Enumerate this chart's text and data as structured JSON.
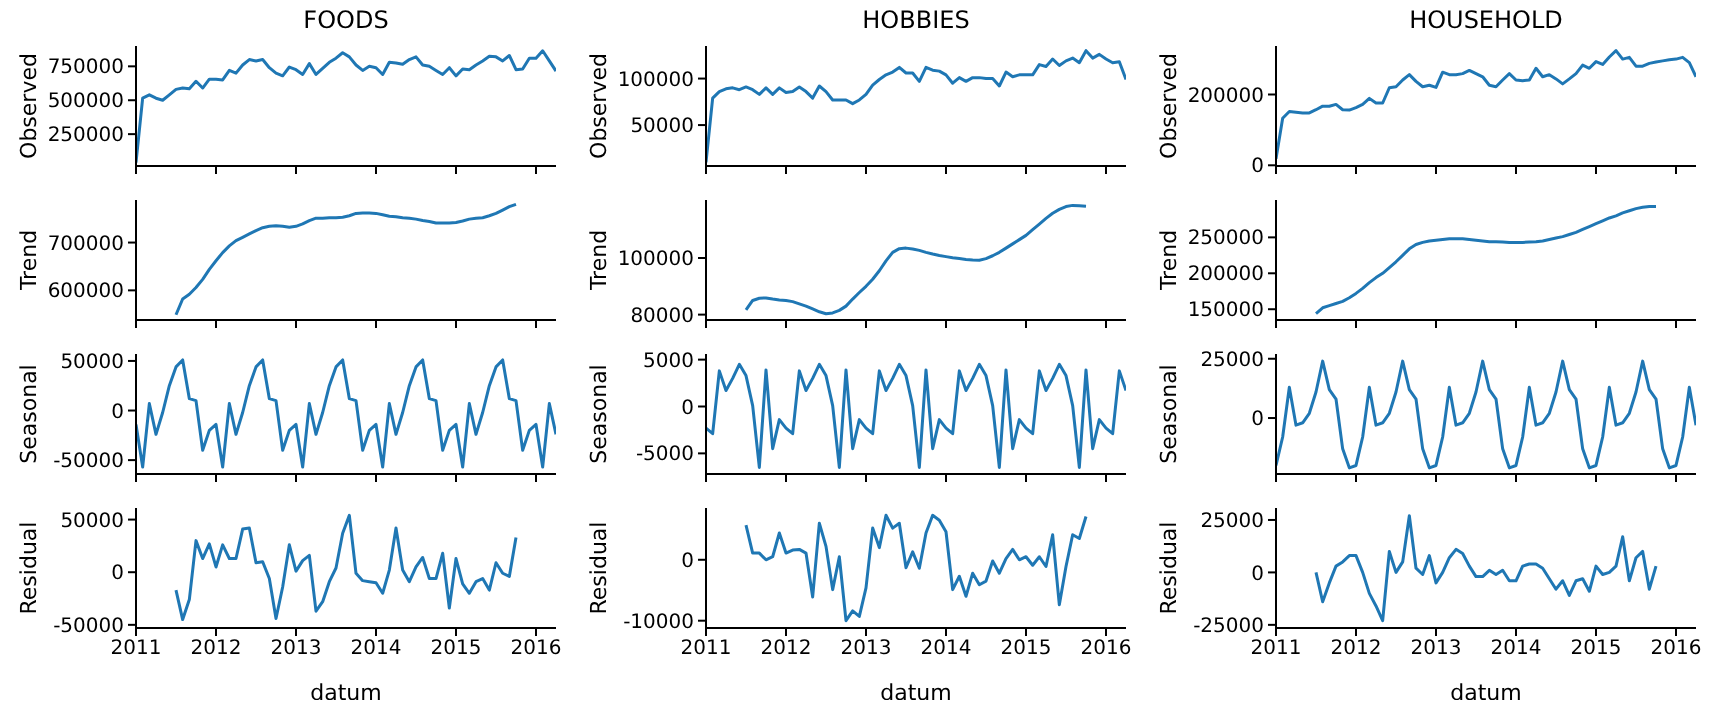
{
  "chart_data": [
    {
      "type": "line",
      "title": "FOODS",
      "ylabel": "Observed",
      "tick_labels": "y",
      "xlim": [
        "2011-01",
        "2016-04"
      ],
      "xticks": [
        "2011",
        "2012",
        "2013",
        "2014",
        "2015",
        "2016"
      ],
      "ylim": [
        15000,
        900000
      ],
      "yticks": [
        250000,
        500000,
        750000
      ],
      "color": "#1f77b4",
      "x": [
        "2011-01",
        "2011-02",
        "2011-03",
        "2011-04",
        "2011-05",
        "2011-06",
        "2011-07",
        "2011-08",
        "2011-09",
        "2011-10",
        "2011-11",
        "2011-12",
        "2012-01",
        "2012-02",
        "2012-03",
        "2012-04",
        "2012-05",
        "2012-06",
        "2012-07",
        "2012-08",
        "2012-09",
        "2012-10",
        "2012-11",
        "2012-12",
        "2013-01",
        "2013-02",
        "2013-03",
        "2013-04",
        "2013-05",
        "2013-06",
        "2013-07",
        "2013-08",
        "2013-09",
        "2013-10",
        "2013-11",
        "2013-12",
        "2014-01",
        "2014-02",
        "2014-03",
        "2014-04",
        "2014-05",
        "2014-06",
        "2014-07",
        "2014-08",
        "2014-09",
        "2014-10",
        "2014-11",
        "2014-12",
        "2015-01",
        "2015-02",
        "2015-03",
        "2015-04",
        "2015-05",
        "2015-06",
        "2015-07",
        "2015-08",
        "2015-09",
        "2015-10",
        "2015-11",
        "2015-12",
        "2016-01",
        "2016-02",
        "2016-03",
        "2016-04"
      ],
      "values": [
        40000,
        515000,
        540000,
        515000,
        500000,
        540000,
        580000,
        590000,
        585000,
        640000,
        590000,
        655000,
        655000,
        650000,
        720000,
        700000,
        760000,
        800000,
        790000,
        800000,
        740000,
        700000,
        680000,
        745000,
        725000,
        690000,
        770000,
        690000,
        735000,
        780000,
        810000,
        850000,
        820000,
        760000,
        720000,
        750000,
        740000,
        690000,
        780000,
        775000,
        765000,
        800000,
        820000,
        760000,
        750000,
        720000,
        690000,
        740000,
        680000,
        730000,
        725000,
        760000,
        790000,
        825000,
        820000,
        790000,
        830000,
        725000,
        730000,
        810000,
        810000,
        865000,
        790000,
        715000
      ]
    },
    {
      "type": "line",
      "title": "HOBBIES",
      "ylabel": "Observed",
      "tick_labels": "y",
      "xlim": [
        "2011-01",
        "2016-04"
      ],
      "xticks": [
        "2011",
        "2012",
        "2013",
        "2014",
        "2015",
        "2016"
      ],
      "ylim": [
        6000,
        135000
      ],
      "yticks": [
        50000,
        100000
      ],
      "color": "#1f77b4",
      "x": [
        "2011-01",
        "2011-02",
        "2011-03",
        "2011-04",
        "2011-05",
        "2011-06",
        "2011-07",
        "2011-08",
        "2011-09",
        "2011-10",
        "2011-11",
        "2011-12",
        "2012-01",
        "2012-02",
        "2012-03",
        "2012-04",
        "2012-05",
        "2012-06",
        "2012-07",
        "2012-08",
        "2012-09",
        "2012-10",
        "2012-11",
        "2012-12",
        "2013-01",
        "2013-02",
        "2013-03",
        "2013-04",
        "2013-05",
        "2013-06",
        "2013-07",
        "2013-08",
        "2013-09",
        "2013-10",
        "2013-11",
        "2013-12",
        "2014-01",
        "2014-02",
        "2014-03",
        "2014-04",
        "2014-05",
        "2014-06",
        "2014-07",
        "2014-08",
        "2014-09",
        "2014-10",
        "2014-11",
        "2014-12",
        "2015-01",
        "2015-02",
        "2015-03",
        "2015-04",
        "2015-05",
        "2015-06",
        "2015-07",
        "2015-08",
        "2015-09",
        "2015-10",
        "2015-11",
        "2015-12",
        "2016-01",
        "2016-02",
        "2016-03",
        "2016-04"
      ],
      "values": [
        10000,
        79000,
        86000,
        89000,
        90000,
        88000,
        91000,
        88000,
        83000,
        90000,
        83000,
        90000,
        85000,
        86000,
        91000,
        86000,
        79000,
        92000,
        86000,
        77000,
        77000,
        77000,
        73000,
        77000,
        83000,
        93000,
        99000,
        104000,
        107000,
        112000,
        106000,
        106000,
        97000,
        112000,
        109000,
        108000,
        104000,
        95000,
        101000,
        97000,
        101000,
        101000,
        100000,
        100000,
        92000,
        107000,
        102000,
        104000,
        104000,
        104000,
        115000,
        113000,
        121000,
        114000,
        119000,
        122000,
        117000,
        130000,
        122000,
        126000,
        121000,
        117000,
        118000,
        99000
      ]
    },
    {
      "type": "line",
      "title": "HOUSEHOLD",
      "ylabel": "Observed",
      "tick_labels": "y",
      "xlim": [
        "2011-01",
        "2016-04"
      ],
      "xticks": [
        "2011",
        "2012",
        "2013",
        "2014",
        "2015",
        "2016"
      ],
      "ylim": [
        -2000,
        337000
      ],
      "yticks": [
        0,
        200000
      ],
      "color": "#1f77b4",
      "x": [
        "2011-01",
        "2011-02",
        "2011-03",
        "2011-04",
        "2011-05",
        "2011-06",
        "2011-07",
        "2011-08",
        "2011-09",
        "2011-10",
        "2011-11",
        "2011-12",
        "2012-01",
        "2012-02",
        "2012-03",
        "2012-04",
        "2012-05",
        "2012-06",
        "2012-07",
        "2012-08",
        "2012-09",
        "2012-10",
        "2012-11",
        "2012-12",
        "2013-01",
        "2013-02",
        "2013-03",
        "2013-04",
        "2013-05",
        "2013-06",
        "2013-07",
        "2013-08",
        "2013-09",
        "2013-10",
        "2013-11",
        "2013-12",
        "2014-01",
        "2014-02",
        "2014-03",
        "2014-04",
        "2014-05",
        "2014-06",
        "2014-07",
        "2014-08",
        "2014-09",
        "2014-10",
        "2014-11",
        "2014-12",
        "2015-01",
        "2015-02",
        "2015-03",
        "2015-04",
        "2015-05",
        "2015-06",
        "2015-07",
        "2015-08",
        "2015-09",
        "2015-10",
        "2015-11",
        "2015-12",
        "2016-01",
        "2016-02",
        "2016-03",
        "2016-04"
      ],
      "values": [
        18500,
        133000,
        152000,
        150000,
        148000,
        148000,
        157000,
        167000,
        167000,
        172000,
        157000,
        156000,
        163000,
        172000,
        189000,
        176000,
        176000,
        219000,
        222000,
        241000,
        256000,
        237000,
        222000,
        226000,
        220000,
        263000,
        256000,
        256000,
        259000,
        268000,
        259000,
        250000,
        226000,
        222000,
        241000,
        259000,
        241000,
        239000,
        241000,
        274000,
        250000,
        256000,
        244000,
        230000,
        244000,
        259000,
        283000,
        274000,
        293000,
        285000,
        306000,
        324000,
        300000,
        305000,
        280000,
        280000,
        288000,
        292000,
        295000,
        298000,
        300000,
        305000,
        290000,
        250000
      ]
    },
    {
      "type": "line",
      "ylabel": "Trend",
      "tick_labels": "y",
      "xlim": [
        "2011-01",
        "2016-04"
      ],
      "xticks": [
        "2011",
        "2012",
        "2013",
        "2014",
        "2015",
        "2016"
      ],
      "ylim": [
        538000,
        789000
      ],
      "yticks": [
        600000,
        700000
      ],
      "color": "#1f77b4",
      "x": [
        "2011-07",
        "2011-08",
        "2011-09",
        "2011-10",
        "2011-11",
        "2011-12",
        "2012-01",
        "2012-02",
        "2012-03",
        "2012-04",
        "2012-05",
        "2012-06",
        "2012-07",
        "2012-08",
        "2012-09",
        "2012-10",
        "2012-11",
        "2012-12",
        "2013-01",
        "2013-02",
        "2013-03",
        "2013-04",
        "2013-05",
        "2013-06",
        "2013-07",
        "2013-08",
        "2013-09",
        "2013-10",
        "2013-11",
        "2013-12",
        "2014-01",
        "2014-02",
        "2014-03",
        "2014-04",
        "2014-05",
        "2014-06",
        "2014-07",
        "2014-08",
        "2014-09",
        "2014-10",
        "2014-11",
        "2014-12",
        "2015-01",
        "2015-02",
        "2015-03",
        "2015-04",
        "2015-05",
        "2015-06",
        "2015-07",
        "2015-08",
        "2015-09",
        "2015-10"
      ],
      "values": [
        549000,
        582000,
        592000,
        606000,
        623000,
        644000,
        662000,
        679000,
        693000,
        704000,
        711000,
        718000,
        725000,
        731000,
        734000,
        735000,
        734000,
        732000,
        734000,
        739000,
        746000,
        751000,
        751000,
        752000,
        752000,
        753000,
        756000,
        761000,
        762000,
        762000,
        761000,
        758000,
        755000,
        754000,
        752000,
        751000,
        749000,
        746000,
        744000,
        741000,
        741000,
        741000,
        742000,
        745000,
        749000,
        751000,
        752000,
        756000,
        761000,
        768000,
        775000,
        780000
      ]
    },
    {
      "type": "line",
      "ylabel": "Trend",
      "tick_labels": "y",
      "xlim": [
        "2011-01",
        "2016-04"
      ],
      "xticks": [
        "2011",
        "2012",
        "2013",
        "2014",
        "2015",
        "2016"
      ],
      "ylim": [
        78100,
        120500
      ],
      "yticks": [
        80000,
        100000
      ],
      "color": "#1f77b4",
      "x": [
        "2011-07",
        "2011-08",
        "2011-09",
        "2011-10",
        "2011-11",
        "2011-12",
        "2012-01",
        "2012-02",
        "2012-03",
        "2012-04",
        "2012-05",
        "2012-06",
        "2012-07",
        "2012-08",
        "2012-09",
        "2012-10",
        "2012-11",
        "2012-12",
        "2013-01",
        "2013-02",
        "2013-03",
        "2013-04",
        "2013-05",
        "2013-06",
        "2013-07",
        "2013-08",
        "2013-09",
        "2013-10",
        "2013-11",
        "2013-12",
        "2014-01",
        "2014-02",
        "2014-03",
        "2014-04",
        "2014-05",
        "2014-06",
        "2014-07",
        "2014-08",
        "2014-09",
        "2014-10",
        "2014-11",
        "2014-12",
        "2015-01",
        "2015-02",
        "2015-03",
        "2015-04",
        "2015-05",
        "2015-06",
        "2015-07",
        "2015-08",
        "2015-09",
        "2015-10"
      ],
      "values": [
        81700,
        85000,
        85800,
        85900,
        85500,
        85200,
        85000,
        84600,
        83800,
        83000,
        82000,
        81000,
        80300,
        80600,
        81500,
        83000,
        85500,
        87800,
        90000,
        92500,
        95500,
        99000,
        102000,
        103300,
        103500,
        103200,
        102700,
        102000,
        101400,
        100900,
        100500,
        100100,
        99800,
        99500,
        99300,
        99200,
        99800,
        100800,
        102000,
        103500,
        105000,
        106500,
        108000,
        110000,
        112000,
        114000,
        115800,
        117200,
        118200,
        118600,
        118500,
        118300
      ]
    },
    {
      "type": "line",
      "ylabel": "Trend",
      "tick_labels": "y",
      "xlim": [
        "2011-01",
        "2016-04"
      ],
      "xticks": [
        "2011",
        "2012",
        "2013",
        "2014",
        "2015",
        "2016"
      ],
      "ylim": [
        135000,
        302000
      ],
      "yticks": [
        150000,
        200000,
        250000
      ],
      "color": "#1f77b4",
      "x": [
        "2011-07",
        "2011-08",
        "2011-09",
        "2011-10",
        "2011-11",
        "2011-12",
        "2012-01",
        "2012-02",
        "2012-03",
        "2012-04",
        "2012-05",
        "2012-06",
        "2012-07",
        "2012-08",
        "2012-09",
        "2012-10",
        "2012-11",
        "2012-12",
        "2013-01",
        "2013-02",
        "2013-03",
        "2013-04",
        "2013-05",
        "2013-06",
        "2013-07",
        "2013-08",
        "2013-09",
        "2013-10",
        "2013-11",
        "2013-12",
        "2014-01",
        "2014-02",
        "2014-03",
        "2014-04",
        "2014-05",
        "2014-06",
        "2014-07",
        "2014-08",
        "2014-09",
        "2014-10",
        "2014-11",
        "2014-12",
        "2015-01",
        "2015-02",
        "2015-03",
        "2015-04",
        "2015-05",
        "2015-06",
        "2015-07",
        "2015-08",
        "2015-09",
        "2015-10"
      ],
      "values": [
        144000,
        152000,
        155000,
        158000,
        161000,
        166000,
        172000,
        179000,
        187000,
        194000,
        200000,
        208000,
        216000,
        225000,
        234000,
        240000,
        243000,
        245000,
        246000,
        247000,
        248000,
        248000,
        248000,
        247000,
        246000,
        245000,
        244000,
        244000,
        243500,
        243000,
        243000,
        243000,
        243500,
        244000,
        245000,
        247000,
        249000,
        251000,
        254000,
        257000,
        261000,
        265000,
        269000,
        273000,
        277000,
        280000,
        284000,
        287000,
        290000,
        292000,
        293000,
        293000
      ]
    },
    {
      "type": "line",
      "ylabel": "Seasonal",
      "tick_labels": "y",
      "xlim": [
        "2011-01",
        "2016-04"
      ],
      "xticks": [
        "2011",
        "2012",
        "2013",
        "2014",
        "2015",
        "2016"
      ],
      "ylim": [
        -64000,
        57000
      ],
      "yticks": [
        -50000,
        0,
        50000
      ],
      "color": "#1f77b4",
      "x": [
        "2011-01",
        "2011-02",
        "2011-03",
        "2011-04",
        "2011-05",
        "2011-06",
        "2011-07",
        "2011-08",
        "2011-09",
        "2011-10",
        "2011-11",
        "2011-12",
        "2012-01",
        "2012-02",
        "2012-03",
        "2012-04",
        "2012-05",
        "2012-06",
        "2012-07",
        "2012-08",
        "2012-09",
        "2012-10",
        "2012-11",
        "2012-12",
        "2013-01",
        "2013-02",
        "2013-03",
        "2013-04",
        "2013-05",
        "2013-06",
        "2013-07",
        "2013-08",
        "2013-09",
        "2013-10",
        "2013-11",
        "2013-12",
        "2014-01",
        "2014-02",
        "2014-03",
        "2014-04",
        "2014-05",
        "2014-06",
        "2014-07",
        "2014-08",
        "2014-09",
        "2014-10",
        "2014-11",
        "2014-12",
        "2015-01",
        "2015-02",
        "2015-03",
        "2015-04",
        "2015-05",
        "2015-06",
        "2015-07",
        "2015-08",
        "2015-09",
        "2015-10",
        "2015-11",
        "2015-12",
        "2016-01",
        "2016-02",
        "2016-03",
        "2016-04"
      ],
      "values": [
        -14000,
        -57000,
        7000,
        -24000,
        -2000,
        25000,
        44000,
        51000,
        12000,
        10000,
        -40000,
        -20000,
        -14000,
        -57000,
        7000,
        -24000,
        -2000,
        25000,
        44000,
        51000,
        12000,
        10000,
        -40000,
        -20000,
        -14000,
        -57000,
        7000,
        -24000,
        -2000,
        25000,
        44000,
        51000,
        12000,
        10000,
        -40000,
        -20000,
        -14000,
        -57000,
        7000,
        -24000,
        -2000,
        25000,
        44000,
        51000,
        12000,
        10000,
        -40000,
        -20000,
        -14000,
        -57000,
        7000,
        -24000,
        -2000,
        25000,
        44000,
        51000,
        12000,
        10000,
        -40000,
        -20000,
        -14000,
        -57000,
        7000,
        -24000
      ]
    },
    {
      "type": "line",
      "ylabel": "Seasonal",
      "tick_labels": "y",
      "xlim": [
        "2011-01",
        "2016-04"
      ],
      "xticks": [
        "2011",
        "2012",
        "2013",
        "2014",
        "2015",
        "2016"
      ],
      "ylim": [
        -7200,
        5600
      ],
      "yticks": [
        -5000,
        0,
        5000
      ],
      "color": "#1f77b4",
      "x": [
        "2011-01",
        "2011-02",
        "2011-03",
        "2011-04",
        "2011-05",
        "2011-06",
        "2011-07",
        "2011-08",
        "2011-09",
        "2011-10",
        "2011-11",
        "2011-12",
        "2012-01",
        "2012-02",
        "2012-03",
        "2012-04",
        "2012-05",
        "2012-06",
        "2012-07",
        "2012-08",
        "2012-09",
        "2012-10",
        "2012-11",
        "2012-12",
        "2013-01",
        "2013-02",
        "2013-03",
        "2013-04",
        "2013-05",
        "2013-06",
        "2013-07",
        "2013-08",
        "2013-09",
        "2013-10",
        "2013-11",
        "2013-12",
        "2014-01",
        "2014-02",
        "2014-03",
        "2014-04",
        "2014-05",
        "2014-06",
        "2014-07",
        "2014-08",
        "2014-09",
        "2014-10",
        "2014-11",
        "2014-12",
        "2015-01",
        "2015-02",
        "2015-03",
        "2015-04",
        "2015-05",
        "2015-06",
        "2015-07",
        "2015-08",
        "2015-09",
        "2015-10",
        "2015-11",
        "2015-12",
        "2016-01",
        "2016-02",
        "2016-03",
        "2016-04"
      ],
      "values": [
        -2300,
        -2900,
        3800,
        1700,
        3000,
        4500,
        3300,
        100,
        -6500,
        3900,
        -4500,
        -1400,
        -2300,
        -2900,
        3800,
        1700,
        3000,
        4500,
        3300,
        100,
        -6500,
        3900,
        -4500,
        -1400,
        -2300,
        -2900,
        3800,
        1700,
        3000,
        4500,
        3300,
        100,
        -6500,
        3900,
        -4500,
        -1400,
        -2300,
        -2900,
        3800,
        1700,
        3000,
        4500,
        3300,
        100,
        -6500,
        3900,
        -4500,
        -1400,
        -2300,
        -2900,
        3800,
        1700,
        3000,
        4500,
        3300,
        100,
        -6500,
        3900,
        -4500,
        -1400,
        -2300,
        -2900,
        3800,
        1700
      ]
    },
    {
      "type": "line",
      "ylabel": "Seasonal",
      "tick_labels": "y",
      "xlim": [
        "2011-01",
        "2016-04"
      ],
      "xticks": [
        "2011",
        "2012",
        "2013",
        "2014",
        "2015",
        "2016"
      ],
      "ylim": [
        -23600,
        27000
      ],
      "yticks": [
        0,
        25000
      ],
      "color": "#1f77b4",
      "x": [
        "2011-01",
        "2011-02",
        "2011-03",
        "2011-04",
        "2011-05",
        "2011-06",
        "2011-07",
        "2011-08",
        "2011-09",
        "2011-10",
        "2011-11",
        "2011-12",
        "2012-01",
        "2012-02",
        "2012-03",
        "2012-04",
        "2012-05",
        "2012-06",
        "2012-07",
        "2012-08",
        "2012-09",
        "2012-10",
        "2012-11",
        "2012-12",
        "2013-01",
        "2013-02",
        "2013-03",
        "2013-04",
        "2013-05",
        "2013-06",
        "2013-07",
        "2013-08",
        "2013-09",
        "2013-10",
        "2013-11",
        "2013-12",
        "2014-01",
        "2014-02",
        "2014-03",
        "2014-04",
        "2014-05",
        "2014-06",
        "2014-07",
        "2014-08",
        "2014-09",
        "2014-10",
        "2014-11",
        "2014-12",
        "2015-01",
        "2015-02",
        "2015-03",
        "2015-04",
        "2015-05",
        "2015-06",
        "2015-07",
        "2015-08",
        "2015-09",
        "2015-10",
        "2015-11",
        "2015-12",
        "2016-01",
        "2016-02",
        "2016-03",
        "2016-04"
      ],
      "values": [
        -20000,
        -8000,
        13000,
        -3000,
        -2000,
        2000,
        11000,
        24000,
        12000,
        8000,
        -13000,
        -21000,
        -20000,
        -8000,
        13000,
        -3000,
        -2000,
        2000,
        11000,
        24000,
        12000,
        8000,
        -13000,
        -21000,
        -20000,
        -8000,
        13000,
        -3000,
        -2000,
        2000,
        11000,
        24000,
        12000,
        8000,
        -13000,
        -21000,
        -20000,
        -8000,
        13000,
        -3000,
        -2000,
        2000,
        11000,
        24000,
        12000,
        8000,
        -13000,
        -21000,
        -20000,
        -8000,
        13000,
        -3000,
        -2000,
        2000,
        11000,
        24000,
        12000,
        8000,
        -13000,
        -21000,
        -20000,
        -8000,
        13000,
        -3000
      ]
    },
    {
      "type": "line",
      "ylabel": "Residual",
      "xlabel": "datum",
      "xlim": [
        "2011-01",
        "2016-04"
      ],
      "xticks": [
        "2011",
        "2012",
        "2013",
        "2014",
        "2015",
        "2016"
      ],
      "ylim": [
        -53000,
        61000
      ],
      "yticks": [
        -50000,
        0,
        50000
      ],
      "color": "#1f77b4",
      "x": [
        "2011-07",
        "2011-08",
        "2011-09",
        "2011-10",
        "2011-11",
        "2011-12",
        "2012-01",
        "2012-02",
        "2012-03",
        "2012-04",
        "2012-05",
        "2012-06",
        "2012-07",
        "2012-08",
        "2012-09",
        "2012-10",
        "2012-11",
        "2012-12",
        "2013-01",
        "2013-02",
        "2013-03",
        "2013-04",
        "2013-05",
        "2013-06",
        "2013-07",
        "2013-08",
        "2013-09",
        "2013-10",
        "2013-11",
        "2013-12",
        "2014-01",
        "2014-02",
        "2014-03",
        "2014-04",
        "2014-05",
        "2014-06",
        "2014-07",
        "2014-08",
        "2014-09",
        "2014-10",
        "2014-11",
        "2014-12",
        "2015-01",
        "2015-02",
        "2015-03",
        "2015-04",
        "2015-05",
        "2015-06",
        "2015-07",
        "2015-08",
        "2015-09",
        "2015-10"
      ],
      "values": [
        -17000,
        -45000,
        -26000,
        30000,
        13000,
        27000,
        5000,
        26000,
        13000,
        13000,
        41000,
        42000,
        9000,
        10000,
        -6000,
        -44000,
        -14000,
        26000,
        1000,
        11000,
        16000,
        -37000,
        -28000,
        -9000,
        4000,
        37000,
        54000,
        -1000,
        -8000,
        -9000,
        -10000,
        -20000,
        2000,
        42000,
        2000,
        -9000,
        5000,
        14000,
        -6000,
        -6000,
        18000,
        -34000,
        13000,
        -11000,
        -20000,
        -9000,
        -6000,
        -17000,
        9000,
        -1000,
        -4000,
        33000
      ]
    },
    {
      "type": "line",
      "ylabel": "Residual",
      "xlabel": "datum",
      "xlim": [
        "2011-01",
        "2016-04"
      ],
      "xticks": [
        "2011",
        "2012",
        "2013",
        "2014",
        "2015",
        "2016"
      ],
      "ylim": [
        -11200,
        8500
      ],
      "yticks": [
        -10000,
        0
      ],
      "color": "#1f77b4",
      "x": [
        "2011-07",
        "2011-08",
        "2011-09",
        "2011-10",
        "2011-11",
        "2011-12",
        "2012-01",
        "2012-02",
        "2012-03",
        "2012-04",
        "2012-05",
        "2012-06",
        "2012-07",
        "2012-08",
        "2012-09",
        "2012-10",
        "2012-11",
        "2012-12",
        "2013-01",
        "2013-02",
        "2013-03",
        "2013-04",
        "2013-05",
        "2013-06",
        "2013-07",
        "2013-08",
        "2013-09",
        "2013-10",
        "2013-11",
        "2013-12",
        "2014-01",
        "2014-02",
        "2014-03",
        "2014-04",
        "2014-05",
        "2014-06",
        "2014-07",
        "2014-08",
        "2014-09",
        "2014-10",
        "2014-11",
        "2014-12",
        "2015-01",
        "2015-02",
        "2015-03",
        "2015-04",
        "2015-05",
        "2015-06",
        "2015-07",
        "2015-08",
        "2015-09",
        "2015-10"
      ],
      "values": [
        5700,
        1100,
        1100,
        0,
        500,
        4400,
        1100,
        1600,
        1700,
        1100,
        -6100,
        6000,
        2200,
        -4900,
        500,
        -10000,
        -8400,
        -9300,
        -4600,
        5200,
        2000,
        7300,
        5200,
        6000,
        -1300,
        1300,
        -1400,
        4400,
        7300,
        6500,
        4600,
        -4900,
        -2700,
        -6000,
        -2200,
        -4100,
        -3500,
        -200,
        -2200,
        200,
        1700,
        0,
        500,
        -900,
        500,
        -1100,
        4100,
        -7400,
        -1100,
        4100,
        3500,
        7100
      ]
    },
    {
      "type": "line",
      "ylabel": "Residual",
      "xlabel": "datum",
      "xlim": [
        "2011-01",
        "2016-04"
      ],
      "xticks": [
        "2011",
        "2012",
        "2013",
        "2014",
        "2015",
        "2016"
      ],
      "ylim": [
        -26500,
        30700
      ],
      "yticks": [
        -25000,
        0,
        25000
      ],
      "color": "#1f77b4",
      "x": [
        "2011-07",
        "2011-08",
        "2011-09",
        "2011-10",
        "2011-11",
        "2011-12",
        "2012-01",
        "2012-02",
        "2012-03",
        "2012-04",
        "2012-05",
        "2012-06",
        "2012-07",
        "2012-08",
        "2012-09",
        "2012-10",
        "2012-11",
        "2012-12",
        "2013-01",
        "2013-02",
        "2013-03",
        "2013-04",
        "2013-05",
        "2013-06",
        "2013-07",
        "2013-08",
        "2013-09",
        "2013-10",
        "2013-11",
        "2013-12",
        "2014-01",
        "2014-02",
        "2014-03",
        "2014-04",
        "2014-05",
        "2014-06",
        "2014-07",
        "2014-08",
        "2014-09",
        "2014-10",
        "2014-11",
        "2014-12",
        "2015-01",
        "2015-02",
        "2015-03",
        "2015-04",
        "2015-05",
        "2015-06",
        "2015-07",
        "2015-08",
        "2015-09",
        "2015-10"
      ],
      "values": [
        0,
        -14000,
        -5000,
        3000,
        5000,
        8000,
        8000,
        0,
        -10000,
        -16000,
        -23000,
        10000,
        0,
        5000,
        27000,
        2000,
        -1000,
        8000,
        -5000,
        0,
        7000,
        11000,
        9000,
        3000,
        -2000,
        -2000,
        1000,
        -1000,
        1000,
        -4000,
        -4000,
        3000,
        4000,
        4000,
        2000,
        -3000,
        -8000,
        -4000,
        -11000,
        -4000,
        -3000,
        -9000,
        3000,
        -1000,
        0,
        3000,
        17000,
        -4000,
        7000,
        10000,
        -8000,
        3000
      ]
    }
  ]
}
